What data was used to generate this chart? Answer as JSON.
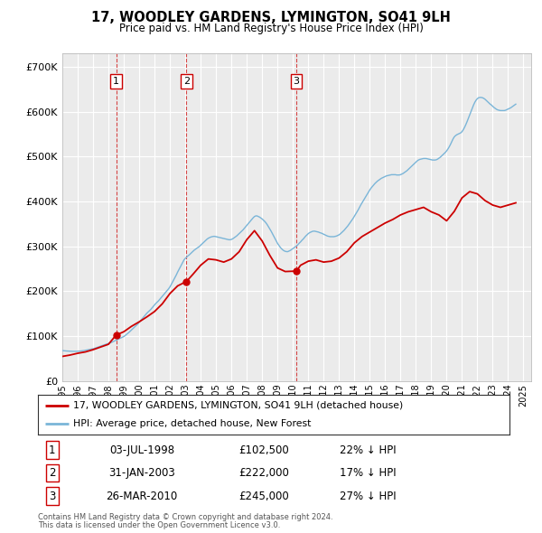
{
  "title": "17, WOODLEY GARDENS, LYMINGTON, SO41 9LH",
  "subtitle": "Price paid vs. HM Land Registry's House Price Index (HPI)",
  "ylim": [
    0,
    730000
  ],
  "yticks": [
    0,
    100000,
    200000,
    300000,
    400000,
    500000,
    600000,
    700000
  ],
  "ytick_labels": [
    "£0",
    "£100K",
    "£200K",
    "£300K",
    "£400K",
    "£500K",
    "£600K",
    "£700K"
  ],
  "background_color": "#ffffff",
  "plot_bg_color": "#ebebeb",
  "grid_color": "#ffffff",
  "hpi_color": "#7ab5d8",
  "price_color": "#cc0000",
  "vline_color": "#cc0000",
  "legend_house": "17, WOODLEY GARDENS, LYMINGTON, SO41 9LH (detached house)",
  "legend_hpi": "HPI: Average price, detached house, New Forest",
  "transactions": [
    {
      "num": 1,
      "date": "03-JUL-1998",
      "price": 102500,
      "pct": "22%",
      "dir": "↓",
      "year_x": 1998.5
    },
    {
      "num": 2,
      "date": "31-JAN-2003",
      "price": 222000,
      "pct": "17%",
      "dir": "↓",
      "year_x": 2003.08
    },
    {
      "num": 3,
      "date": "26-MAR-2010",
      "price": 245000,
      "pct": "27%",
      "dir": "↓",
      "year_x": 2010.23
    }
  ],
  "footnote1": "Contains HM Land Registry data © Crown copyright and database right 2024.",
  "footnote2": "This data is licensed under the Open Government Licence v3.0.",
  "hpi_data": {
    "years": [
      1995.0,
      1995.083,
      1995.167,
      1995.25,
      1995.333,
      1995.417,
      1995.5,
      1995.583,
      1995.667,
      1995.75,
      1995.833,
      1995.917,
      1996.0,
      1996.083,
      1996.167,
      1996.25,
      1996.333,
      1996.417,
      1996.5,
      1996.583,
      1996.667,
      1996.75,
      1996.833,
      1996.917,
      1997.0,
      1997.083,
      1997.167,
      1997.25,
      1997.333,
      1997.417,
      1997.5,
      1997.583,
      1997.667,
      1997.75,
      1997.833,
      1997.917,
      1998.0,
      1998.083,
      1998.167,
      1998.25,
      1998.333,
      1998.417,
      1998.5,
      1998.583,
      1998.667,
      1998.75,
      1998.833,
      1998.917,
      1999.0,
      1999.083,
      1999.167,
      1999.25,
      1999.333,
      1999.417,
      1999.5,
      1999.583,
      1999.667,
      1999.75,
      1999.833,
      1999.917,
      2000.0,
      2000.083,
      2000.167,
      2000.25,
      2000.333,
      2000.417,
      2000.5,
      2000.583,
      2000.667,
      2000.75,
      2000.833,
      2000.917,
      2001.0,
      2001.083,
      2001.167,
      2001.25,
      2001.333,
      2001.417,
      2001.5,
      2001.583,
      2001.667,
      2001.75,
      2001.833,
      2001.917,
      2002.0,
      2002.083,
      2002.167,
      2002.25,
      2002.333,
      2002.417,
      2002.5,
      2002.583,
      2002.667,
      2002.75,
      2002.833,
      2002.917,
      2003.0,
      2003.083,
      2003.167,
      2003.25,
      2003.333,
      2003.417,
      2003.5,
      2003.583,
      2003.667,
      2003.75,
      2003.833,
      2003.917,
      2004.0,
      2004.083,
      2004.167,
      2004.25,
      2004.333,
      2004.417,
      2004.5,
      2004.583,
      2004.667,
      2004.75,
      2004.833,
      2004.917,
      2005.0,
      2005.083,
      2005.167,
      2005.25,
      2005.333,
      2005.417,
      2005.5,
      2005.583,
      2005.667,
      2005.75,
      2005.833,
      2005.917,
      2006.0,
      2006.083,
      2006.167,
      2006.25,
      2006.333,
      2006.417,
      2006.5,
      2006.583,
      2006.667,
      2006.75,
      2006.833,
      2006.917,
      2007.0,
      2007.083,
      2007.167,
      2007.25,
      2007.333,
      2007.417,
      2007.5,
      2007.583,
      2007.667,
      2007.75,
      2007.833,
      2007.917,
      2008.0,
      2008.083,
      2008.167,
      2008.25,
      2008.333,
      2008.417,
      2008.5,
      2008.583,
      2008.667,
      2008.75,
      2008.833,
      2008.917,
      2009.0,
      2009.083,
      2009.167,
      2009.25,
      2009.333,
      2009.417,
      2009.5,
      2009.583,
      2009.667,
      2009.75,
      2009.833,
      2009.917,
      2010.0,
      2010.083,
      2010.167,
      2010.25,
      2010.333,
      2010.417,
      2010.5,
      2010.583,
      2010.667,
      2010.75,
      2010.833,
      2010.917,
      2011.0,
      2011.083,
      2011.167,
      2011.25,
      2011.333,
      2011.417,
      2011.5,
      2011.583,
      2011.667,
      2011.75,
      2011.833,
      2011.917,
      2012.0,
      2012.083,
      2012.167,
      2012.25,
      2012.333,
      2012.417,
      2012.5,
      2012.583,
      2012.667,
      2012.75,
      2012.833,
      2012.917,
      2013.0,
      2013.083,
      2013.167,
      2013.25,
      2013.333,
      2013.417,
      2013.5,
      2013.583,
      2013.667,
      2013.75,
      2013.833,
      2013.917,
      2014.0,
      2014.083,
      2014.167,
      2014.25,
      2014.333,
      2014.417,
      2014.5,
      2014.583,
      2014.667,
      2014.75,
      2014.833,
      2014.917,
      2015.0,
      2015.083,
      2015.167,
      2015.25,
      2015.333,
      2015.417,
      2015.5,
      2015.583,
      2015.667,
      2015.75,
      2015.833,
      2015.917,
      2016.0,
      2016.083,
      2016.167,
      2016.25,
      2016.333,
      2016.417,
      2016.5,
      2016.583,
      2016.667,
      2016.75,
      2016.833,
      2016.917,
      2017.0,
      2017.083,
      2017.167,
      2017.25,
      2017.333,
      2017.417,
      2017.5,
      2017.583,
      2017.667,
      2017.75,
      2017.833,
      2017.917,
      2018.0,
      2018.083,
      2018.167,
      2018.25,
      2018.333,
      2018.417,
      2018.5,
      2018.583,
      2018.667,
      2018.75,
      2018.833,
      2018.917,
      2019.0,
      2019.083,
      2019.167,
      2019.25,
      2019.333,
      2019.417,
      2019.5,
      2019.583,
      2019.667,
      2019.75,
      2019.833,
      2019.917,
      2020.0,
      2020.083,
      2020.167,
      2020.25,
      2020.333,
      2020.417,
      2020.5,
      2020.583,
      2020.667,
      2020.75,
      2020.833,
      2020.917,
      2021.0,
      2021.083,
      2021.167,
      2021.25,
      2021.333,
      2021.417,
      2021.5,
      2021.583,
      2021.667,
      2021.75,
      2021.833,
      2021.917,
      2022.0,
      2022.083,
      2022.167,
      2022.25,
      2022.333,
      2022.417,
      2022.5,
      2022.583,
      2022.667,
      2022.75,
      2022.833,
      2022.917,
      2023.0,
      2023.083,
      2023.167,
      2023.25,
      2023.333,
      2023.417,
      2023.5,
      2023.583,
      2023.667,
      2023.75,
      2023.833,
      2023.917,
      2024.0,
      2024.083,
      2024.167,
      2024.25,
      2024.333,
      2024.417,
      2024.5
    ],
    "values": [
      100000,
      99500,
      99000,
      98700,
      98400,
      98100,
      97900,
      97700,
      97500,
      97400,
      97400,
      97500,
      97700,
      98000,
      98400,
      98900,
      99500,
      100200,
      101000,
      101800,
      102600,
      103400,
      104200,
      105000,
      105900,
      107000,
      108500,
      110000,
      111500,
      113000,
      114500,
      116000,
      117500,
      119000,
      120500,
      122000,
      123000,
      124500,
      126000,
      128000,
      130000,
      132000,
      134000,
      136000,
      138000,
      140000,
      142000,
      144000,
      146000,
      149000,
      152500,
      156000,
      159500,
      163500,
      167500,
      171500,
      175500,
      179500,
      183500,
      187500,
      192500,
      197500,
      202500,
      207500,
      212500,
      217500,
      222500,
      226500,
      230500,
      234500,
      239500,
      244500,
      249500,
      254500,
      258500,
      262500,
      267500,
      272500,
      277500,
      282500,
      287500,
      292500,
      297500,
      302500,
      308500,
      316000,
      324000,
      332000,
      340000,
      348000,
      357000,
      365000,
      373000,
      381000,
      389000,
      397000,
      402000,
      406000,
      410000,
      413000,
      417000,
      421000,
      425000,
      429000,
      432000,
      435000,
      438000,
      441000,
      445000,
      449000,
      453000,
      457000,
      461000,
      465000,
      468000,
      470000,
      472000,
      473000,
      474000,
      474000,
      473000,
      472000,
      471000,
      470000,
      469000,
      468000,
      467000,
      466000,
      465000,
      464000,
      463000,
      463000,
      464000,
      466000,
      469000,
      472000,
      475000,
      479000,
      483000,
      487000,
      491000,
      495000,
      500000,
      505000,
      510000,
      515000,
      520000,
      525000,
      530000,
      535000,
      539000,
      541000,
      541000,
      539000,
      537000,
      534000,
      531000,
      527000,
      523000,
      518000,
      512000,
      505000,
      498000,
      491000,
      483000,
      475000,
      467000,
      459000,
      451000,
      445000,
      439000,
      434000,
      430000,
      427000,
      425000,
      424000,
      424000,
      426000,
      428000,
      431000,
      434000,
      437000,
      440000,
      443000,
      447000,
      452000,
      456000,
      461000,
      465000,
      470000,
      475000,
      479000,
      483000,
      486000,
      488000,
      490000,
      491000,
      491000,
      490000,
      489000,
      488000,
      486000,
      485000,
      483000,
      481000,
      479000,
      477000,
      475000,
      474000,
      473000,
      473000,
      473000,
      473000,
      474000,
      475000,
      477000,
      479000,
      482000,
      486000,
      490000,
      494000,
      499000,
      504000,
      509000,
      515000,
      521000,
      527000,
      533000,
      540000,
      547000,
      554000,
      561000,
      569000,
      577000,
      584000,
      591000,
      598000,
      605000,
      612000,
      619000,
      626000,
      632000,
      637000,
      642000,
      647000,
      651000,
      655000,
      658000,
      661000,
      664000,
      666000,
      668000,
      670000,
      672000,
      673000,
      674000,
      675000,
      676000,
      676000,
      676000,
      676000,
      675000,
      675000,
      675000,
      676000,
      678000,
      680000,
      683000,
      686000,
      689000,
      693000,
      697000,
      701000,
      705000,
      709000,
      713000,
      717000,
      721000,
      724000,
      726000,
      727000,
      728000,
      729000,
      729000,
      729000,
      728000,
      727000,
      726000,
      725000,
      724000,
      724000,
      724000,
      725000,
      727000,
      730000,
      733000,
      737000,
      741000,
      745000,
      749000,
      754000,
      760000,
      767000,
      775000,
      784000,
      793000,
      800000,
      804000,
      807000,
      809000,
      811000,
      813000,
      817000,
      823000,
      831000,
      840000,
      850000,
      861000,
      872000,
      883000,
      894000,
      904000,
      913000,
      920000,
      925000,
      928000,
      929000,
      929000,
      928000,
      926000,
      923000,
      919000,
      915000,
      911000,
      907000,
      904000,
      900000,
      896000,
      893000,
      890000,
      888000,
      887000,
      886000,
      886000,
      886000,
      886000,
      887000,
      889000,
      891000,
      893000,
      895000,
      898000,
      901000,
      904000,
      907000
    ]
  },
  "price_data": {
    "years": [
      1995.0,
      1995.5,
      1996.0,
      1996.5,
      1997.0,
      1997.5,
      1998.0,
      1998.5,
      1999.0,
      1999.5,
      2000.0,
      2000.5,
      2001.0,
      2001.5,
      2002.0,
      2002.5,
      2003.08,
      2003.5,
      2004.0,
      2004.5,
      2005.0,
      2005.5,
      2006.0,
      2006.5,
      2007.0,
      2007.5,
      2008.0,
      2008.5,
      2009.0,
      2009.5,
      2010.23,
      2010.5,
      2011.0,
      2011.5,
      2012.0,
      2012.5,
      2013.0,
      2013.5,
      2014.0,
      2014.5,
      2015.0,
      2015.5,
      2016.0,
      2016.5,
      2017.0,
      2017.5,
      2018.0,
      2018.5,
      2019.0,
      2019.5,
      2020.0,
      2020.5,
      2021.0,
      2021.5,
      2022.0,
      2022.5,
      2023.0,
      2023.5,
      2024.0,
      2024.5
    ],
    "values": [
      55000,
      58000,
      62000,
      65000,
      70000,
      76000,
      82000,
      102500,
      110000,
      122000,
      132000,
      143000,
      155000,
      172000,
      195000,
      212000,
      222000,
      238000,
      258000,
      272000,
      270000,
      265000,
      272000,
      288000,
      315000,
      335000,
      312000,
      280000,
      252000,
      244000,
      245000,
      258000,
      267000,
      270000,
      265000,
      267000,
      274000,
      288000,
      308000,
      322000,
      332000,
      342000,
      352000,
      360000,
      370000,
      377000,
      382000,
      387000,
      377000,
      370000,
      357000,
      378000,
      408000,
      422000,
      417000,
      402000,
      392000,
      387000,
      392000,
      397000
    ]
  },
  "xlim": [
    1995.0,
    2025.5
  ],
  "xtick_years": [
    1995,
    1996,
    1997,
    1998,
    1999,
    2000,
    2001,
    2002,
    2003,
    2004,
    2005,
    2006,
    2007,
    2008,
    2009,
    2010,
    2011,
    2012,
    2013,
    2014,
    2015,
    2016,
    2017,
    2018,
    2019,
    2020,
    2021,
    2022,
    2023,
    2024,
    2025
  ],
  "hpi_scale": 0.68
}
